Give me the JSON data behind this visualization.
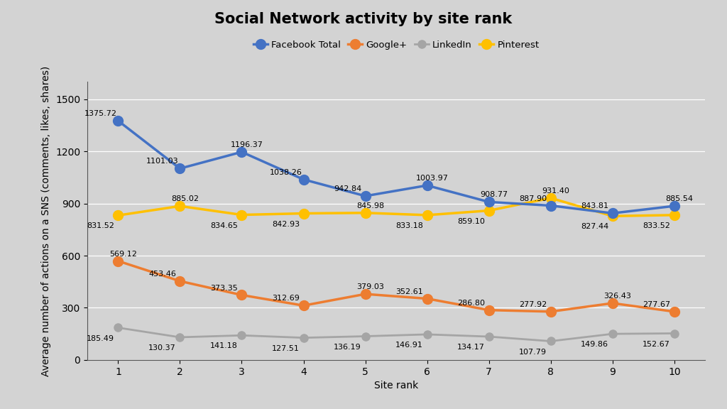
{
  "title": "Social Network activity by site rank",
  "xlabel": "Site rank",
  "ylabel": "Average number of actions on a SNS (comments, likes, shares)",
  "x": [
    1,
    2,
    3,
    4,
    5,
    6,
    7,
    8,
    9,
    10
  ],
  "series_order": [
    "Facebook Total",
    "Google+",
    "LinkedIn",
    "Pinterest"
  ],
  "series": {
    "Facebook Total": {
      "values": [
        1375.72,
        1101.03,
        1196.37,
        1038.26,
        942.84,
        1003.97,
        908.77,
        887.9,
        843.81,
        885.54
      ],
      "color": "#4472C4",
      "markersize": 10,
      "linewidth": 2.5,
      "zorder": 4
    },
    "Google+": {
      "values": [
        569.12,
        453.46,
        373.35,
        312.69,
        379.03,
        352.61,
        286.8,
        277.92,
        326.43,
        277.67
      ],
      "color": "#ED7D31",
      "markersize": 10,
      "linewidth": 2.5,
      "zorder": 3
    },
    "LinkedIn": {
      "values": [
        185.49,
        130.37,
        141.18,
        127.51,
        136.19,
        146.91,
        134.17,
        107.79,
        149.86,
        152.67
      ],
      "color": "#A5A5A5",
      "markersize": 8,
      "linewidth": 2.0,
      "zorder": 2
    },
    "Pinterest": {
      "values": [
        831.52,
        885.02,
        834.65,
        842.93,
        845.98,
        833.18,
        859.1,
        931.4,
        827.44,
        833.52
      ],
      "color": "#FFC000",
      "markersize": 10,
      "linewidth": 2.5,
      "zorder": 3
    }
  },
  "ylim": [
    0,
    1600
  ],
  "yticks": [
    0,
    300,
    600,
    900,
    1200,
    1500
  ],
  "background_color": "#D3D3D3",
  "plot_bg_color": "#D3D3D3",
  "title_fontsize": 15,
  "label_fontsize": 10,
  "tick_fontsize": 10,
  "annotation_fontsize": 8
}
